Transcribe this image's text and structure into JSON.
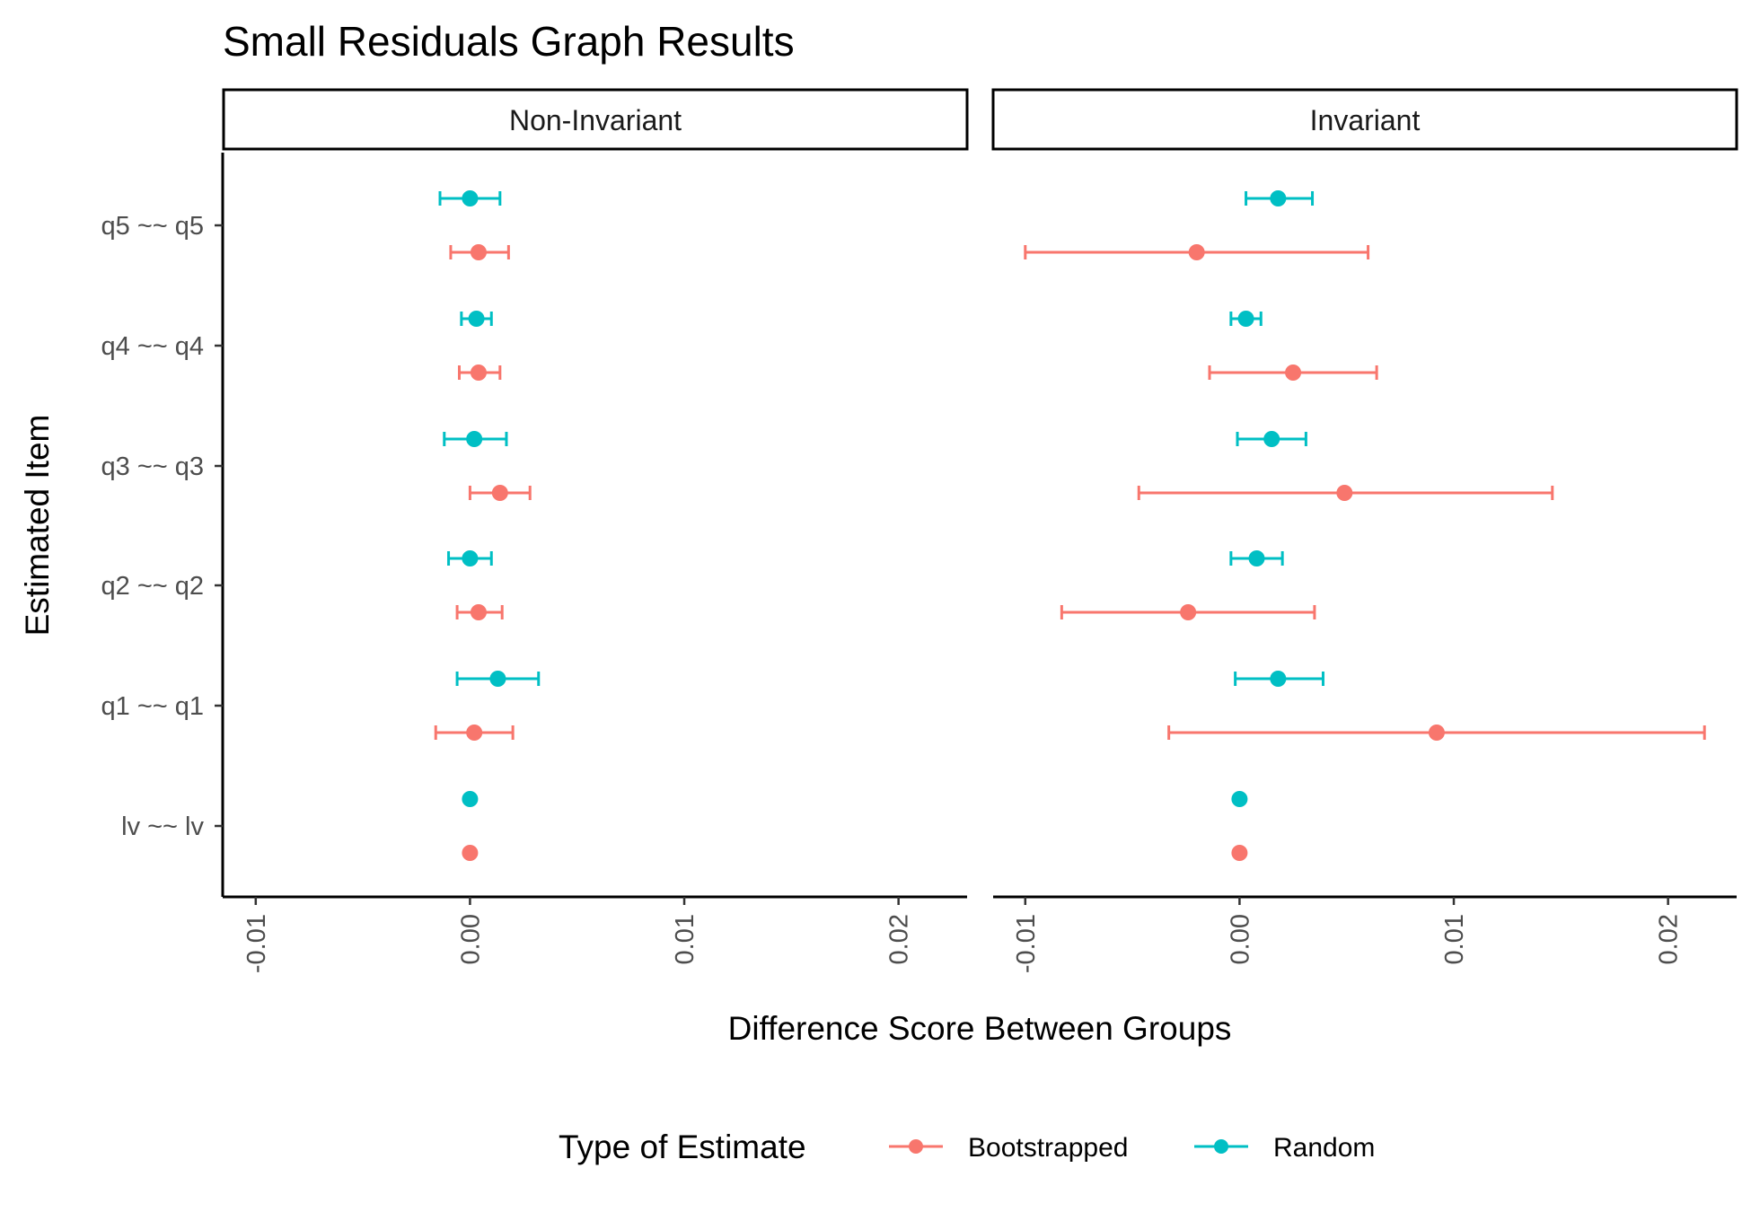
{
  "chart_data": {
    "type": "scatter",
    "title": "Small Residuals Graph Results",
    "xlabel": "Difference Score Between Groups",
    "ylabel": "Estimated Item",
    "xlim": [
      -0.0115,
      0.0232
    ],
    "x_ticks": [
      "-0.01",
      "0.00",
      "0.01",
      "0.02"
    ],
    "x_tick_values": [
      -0.01,
      0.0,
      0.01,
      0.02
    ],
    "categories": [
      "q5 ~~ q5",
      "q4 ~~ q4",
      "q3 ~~ q3",
      "q2 ~~ q2",
      "q1 ~~ q1",
      "lv ~~ lv"
    ],
    "facets": [
      "Non-Invariant",
      "Invariant"
    ],
    "legend": {
      "title": "Type of Estimate",
      "position": "bottom",
      "entries": [
        {
          "name": "Bootstrapped",
          "color": "#F8766D"
        },
        {
          "name": "Random",
          "color": "#00BFC4"
        }
      ]
    },
    "grid": false,
    "series": [
      {
        "name": "Random",
        "color": "#00BFC4",
        "points": [
          {
            "facet": "Non-Invariant",
            "item": "q5 ~~ q5",
            "estimate": 0.0,
            "lower": -0.0014,
            "upper": 0.0014
          },
          {
            "facet": "Non-Invariant",
            "item": "q4 ~~ q4",
            "estimate": 0.0003,
            "lower": -0.0004,
            "upper": 0.001
          },
          {
            "facet": "Non-Invariant",
            "item": "q3 ~~ q3",
            "estimate": 0.0002,
            "lower": -0.0012,
            "upper": 0.0017
          },
          {
            "facet": "Non-Invariant",
            "item": "q2 ~~ q2",
            "estimate": 0.0,
            "lower": -0.001,
            "upper": 0.001
          },
          {
            "facet": "Non-Invariant",
            "item": "q1 ~~ q1",
            "estimate": 0.0013,
            "lower": -0.0006,
            "upper": 0.0032
          },
          {
            "facet": "Non-Invariant",
            "item": "lv ~~ lv",
            "estimate": 0.0,
            "lower": null,
            "upper": null
          },
          {
            "facet": "Invariant",
            "item": "q5 ~~ q5",
            "estimate": 0.0018,
            "lower": 0.0003,
            "upper": 0.0034
          },
          {
            "facet": "Invariant",
            "item": "q4 ~~ q4",
            "estimate": 0.0003,
            "lower": -0.0004,
            "upper": 0.001
          },
          {
            "facet": "Invariant",
            "item": "q3 ~~ q3",
            "estimate": 0.0015,
            "lower": -0.0001,
            "upper": 0.0031
          },
          {
            "facet": "Invariant",
            "item": "q2 ~~ q2",
            "estimate": 0.0008,
            "lower": -0.0004,
            "upper": 0.002
          },
          {
            "facet": "Invariant",
            "item": "q1 ~~ q1",
            "estimate": 0.0018,
            "lower": -0.0002,
            "upper": 0.0039
          },
          {
            "facet": "Invariant",
            "item": "lv ~~ lv",
            "estimate": 0.0,
            "lower": null,
            "upper": null
          }
        ]
      },
      {
        "name": "Bootstrapped",
        "color": "#F8766D",
        "points": [
          {
            "facet": "Non-Invariant",
            "item": "q5 ~~ q5",
            "estimate": 0.0004,
            "lower": -0.0009,
            "upper": 0.0018
          },
          {
            "facet": "Non-Invariant",
            "item": "q4 ~~ q4",
            "estimate": 0.0004,
            "lower": -0.0005,
            "upper": 0.0014
          },
          {
            "facet": "Non-Invariant",
            "item": "q3 ~~ q3",
            "estimate": 0.0014,
            "lower": 0.0,
            "upper": 0.0028
          },
          {
            "facet": "Non-Invariant",
            "item": "q2 ~~ q2",
            "estimate": 0.0004,
            "lower": -0.0006,
            "upper": 0.0015
          },
          {
            "facet": "Non-Invariant",
            "item": "q1 ~~ q1",
            "estimate": 0.0002,
            "lower": -0.0016,
            "upper": 0.002
          },
          {
            "facet": "Non-Invariant",
            "item": "lv ~~ lv",
            "estimate": 0.0,
            "lower": null,
            "upper": null
          },
          {
            "facet": "Invariant",
            "item": "q5 ~~ q5",
            "estimate": -0.002,
            "lower": -0.01,
            "upper": 0.006
          },
          {
            "facet": "Invariant",
            "item": "q4 ~~ q4",
            "estimate": 0.0025,
            "lower": -0.0014,
            "upper": 0.0064
          },
          {
            "facet": "Invariant",
            "item": "q3 ~~ q3",
            "estimate": 0.0049,
            "lower": -0.0047,
            "upper": 0.0146
          },
          {
            "facet": "Invariant",
            "item": "q2 ~~ q2",
            "estimate": -0.0024,
            "lower": -0.0083,
            "upper": 0.0035
          },
          {
            "facet": "Invariant",
            "item": "q1 ~~ q1",
            "estimate": 0.0092,
            "lower": -0.0033,
            "upper": 0.0217
          },
          {
            "facet": "Invariant",
            "item": "lv ~~ lv",
            "estimate": 0.0,
            "lower": null,
            "upper": null
          }
        ]
      }
    ]
  }
}
